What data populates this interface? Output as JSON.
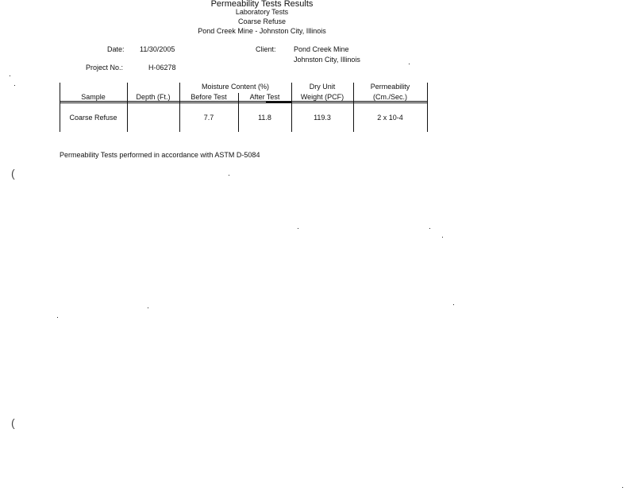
{
  "header": {
    "title": "Permeability Tests Results",
    "subtitle1": "Laboratory Tests",
    "subtitle2": "Coarse Refuse",
    "subtitle3": "Pond Creek Mine - Johnston City, Illinois"
  },
  "info": {
    "date_label": "Date:",
    "date_value": "11/30/2005",
    "client_label": "Client:",
    "client_line1": "Pond Creek Mine",
    "client_line2": "Johnston City, Illinois",
    "project_label": "Project No.:",
    "project_value": "H-06278"
  },
  "table": {
    "headers": {
      "sample": "Sample",
      "depth": "Depth (Ft.)",
      "moisture_group": "Moisture Content (%)",
      "before": "Before Test",
      "after": "After Test",
      "dry_unit_1": "Dry Unit",
      "dry_unit_2": "Weight (PCF)",
      "perm_1": "Permeability",
      "perm_2": "(Cm./Sec.)"
    },
    "rows": [
      {
        "sample": "Coarse Refuse",
        "depth": "",
        "before": "7.7",
        "after": "11.8",
        "dry_unit_weight": "119.3",
        "permeability": "2 x 10-4"
      }
    ]
  },
  "footnote": "Permeability Tests performed in accordance with ASTM D-5084"
}
